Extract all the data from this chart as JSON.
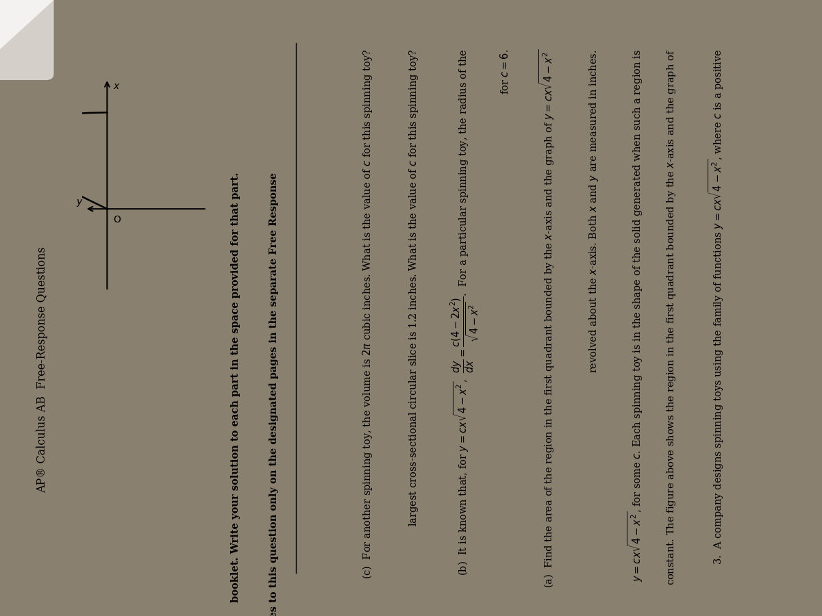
{
  "fig_width": 12.0,
  "fig_height": 9.0,
  "bg_outer": "#8a8070",
  "bg_page": "#d0ccc8",
  "bg_white_strip": "#f0eeec",
  "header_text": "AP® Calculus AB  Free-Response Questions",
  "line1": "3.  A company designs spinning toys using the family of functions $y = cx\\sqrt{4-x^2}$, where $c$ is a positive",
  "line2": "constant. The figure above shows the region in the first quadrant bounded by the $x$-axis and the graph of",
  "line3": "$y = cx\\sqrt{4-x^2}$, for some $c$. Each spinning toy is in the shape of the solid generated when such a region is",
  "line4": "revolved about the $x$-axis. Both $x$ and $y$ are measured in inches.",
  "line_a1": "(a)  Find the area of the region in the first quadrant bounded by the $x$-axis and the graph of $y = cx\\sqrt{4-x^2}$",
  "line_a2": "for $c = 6$.",
  "line_b1": "(b)  It is known that, for $y = cx\\sqrt{4-x^2}$,  $\\dfrac{dy}{dx} = \\dfrac{c(4-2x^2)}{\\sqrt{4-x^2}}$.  For a particular spinning toy, the radius of the",
  "line_b2": "largest cross-sectional circular slice is 1.2 inches. What is the value of $c$ for this spinning toy?",
  "line_c1": "(c)  For another spinning toy, the volume is $2\\pi$ cubic inches. What is the value of $c$ for this spinning toy?",
  "write1": "Write your responses to this question only on the designated pages in the separate Free Response",
  "write2": "booklet. Write your solution to each part in the space provided for that part.",
  "fontsize_body": 10.5,
  "fontsize_header": 11.5
}
